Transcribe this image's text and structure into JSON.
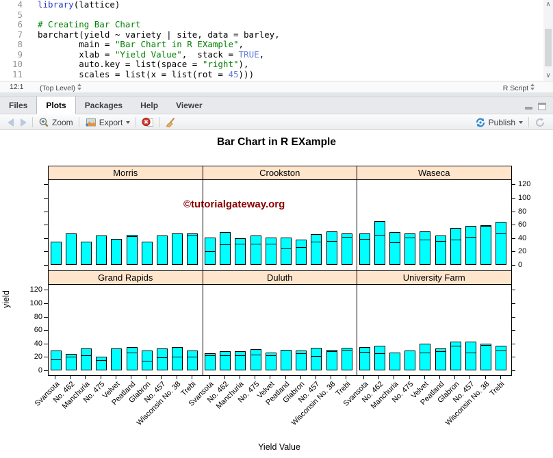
{
  "editor": {
    "lines": [
      {
        "n": "4",
        "tokens": [
          {
            "t": "library",
            "c": "tok-kw"
          },
          {
            "t": "(lattice)",
            "c": ""
          }
        ]
      },
      {
        "n": "5",
        "tokens": []
      },
      {
        "n": "6",
        "tokens": [
          {
            "t": "# Creating Bar Chart",
            "c": "tok-comment"
          }
        ]
      },
      {
        "n": "7",
        "tokens": [
          {
            "t": "barchart(yield ~ variety | site, data = barley,",
            "c": ""
          }
        ]
      },
      {
        "n": "8",
        "tokens": [
          {
            "t": "        main = ",
            "c": ""
          },
          {
            "t": "\"Bar Chart in R EXample\"",
            "c": "tok-str"
          },
          {
            "t": ",",
            "c": ""
          }
        ]
      },
      {
        "n": "9",
        "tokens": [
          {
            "t": "        xlab = ",
            "c": ""
          },
          {
            "t": "\"Yield Value\"",
            "c": "tok-str"
          },
          {
            "t": ",  stack = ",
            "c": ""
          },
          {
            "t": "TRUE",
            "c": "tok-const"
          },
          {
            "t": ",",
            "c": ""
          }
        ]
      },
      {
        "n": "10",
        "tokens": [
          {
            "t": "        auto.key = list(space = ",
            "c": ""
          },
          {
            "t": "\"right\"",
            "c": "tok-str"
          },
          {
            "t": "),",
            "c": ""
          }
        ]
      },
      {
        "n": "11",
        "tokens": [
          {
            "t": "        scales = list(x = list(rot = ",
            "c": ""
          },
          {
            "t": "45",
            "c": "tok-const"
          },
          {
            "t": ")))",
            "c": ""
          }
        ]
      }
    ],
    "status": {
      "position": "12:1",
      "scope": "(Top Level)",
      "doc_type": "R Script"
    }
  },
  "tabs": [
    {
      "label": "Files",
      "active": false
    },
    {
      "label": "Plots",
      "active": true
    },
    {
      "label": "Packages",
      "active": false
    },
    {
      "label": "Help",
      "active": false
    },
    {
      "label": "Viewer",
      "active": false
    }
  ],
  "toolbar": {
    "zoom_label": "Zoom",
    "export_label": "Export",
    "publish_label": "Publish"
  },
  "watermark": {
    "text": "©tutorialgateway.org",
    "color": "#8b0000"
  },
  "chart_data": {
    "type": "bar",
    "title": "Bar Chart in R EXample",
    "xlabel": "Yield Value",
    "ylabel": "yield",
    "y_ticks": [
      0,
      20,
      40,
      60,
      80,
      100,
      120
    ],
    "ylim": [
      -8,
      127
    ],
    "grid": false,
    "legend": "none",
    "bar_color": "#00ffff",
    "bar_border": "#000000",
    "strip_color": "#ffe5cc",
    "categories": [
      "Svansota",
      "No. 462",
      "Manchuria",
      "No. 475",
      "Velvet",
      "Peatland",
      "Glabron",
      "No. 457",
      "Wisconsin No. 38",
      "Trebi"
    ],
    "note": "Overplotted yearly bars: visible bar top = larger year value, inner horizontal line = smaller year value (null = not visible)",
    "panels": [
      {
        "site": "Grand Rapids",
        "row": "bottom",
        "col": 0,
        "bar_tops": [
          29.7,
          24.9,
          33.0,
          20.6,
          32.2,
          35.0,
          29.1,
          32.2,
          34.5,
          29.8
        ],
        "inner_lines": [
          16.6,
          19.9,
          22.1,
          15.2,
          null,
          26.8,
          14.4,
          19.5,
          20.7,
          20.6
        ]
      },
      {
        "site": "Duluth",
        "row": "bottom",
        "col": 1,
        "bar_tops": [
          25.7,
          28.6,
          29.0,
          31.4,
          26.3,
          30.5,
          29.7,
          33.4,
          31.0,
          34.0
        ],
        "inner_lines": [
          22.2,
          22.2,
          22.6,
          23.1,
          22.5,
          null,
          25.9,
          21.0,
          28.6,
          30.9
        ]
      },
      {
        "site": "University Farm",
        "row": "bottom",
        "col": 2,
        "bar_tops": [
          35.1,
          36.4,
          27.0,
          30.0,
          39.9,
          33.0,
          43.1,
          43.3,
          40.0,
          36.6
        ],
        "inner_lines": [
          27.4,
          25.6,
          null,
          null,
          26.8,
          28.1,
          36.8,
          26.4,
          38.2,
          29.1
        ]
      },
      {
        "site": "Morris",
        "row": "top",
        "col": 0,
        "bar_tops": [
          35.0,
          47.0,
          34.7,
          44.2,
          38.8,
          45.0,
          35.1,
          43.5,
          46.5,
          46.5
        ],
        "inner_lines": [
          null,
          null,
          null,
          null,
          null,
          43.2,
          null,
          null,
          null,
          43.5
        ]
      },
      {
        "site": "Crookston",
        "row": "top",
        "col": 1,
        "bar_tops": [
          40.5,
          48.6,
          39.9,
          44.1,
          41.3,
          41.3,
          38.1,
          45.7,
          49.9,
          46.9
        ],
        "inner_lines": [
          20.6,
          30.5,
          32.0,
          32.1,
          32.1,
          25.2,
          26.2,
          34.3,
          35.9,
          41.8
        ]
      },
      {
        "site": "Waseca",
        "row": "top",
        "col": 2,
        "bar_tops": [
          47.3,
          65.8,
          48.9,
          46.8,
          50.2,
          43.8,
          55.2,
          58.1,
          58.8,
          63.8
        ],
        "inner_lines": [
          38.5,
          44.7,
          33.8,
          41.3,
          37.4,
          36.0,
          37.7,
          42.2,
          58.2,
          46.6
        ]
      }
    ]
  }
}
